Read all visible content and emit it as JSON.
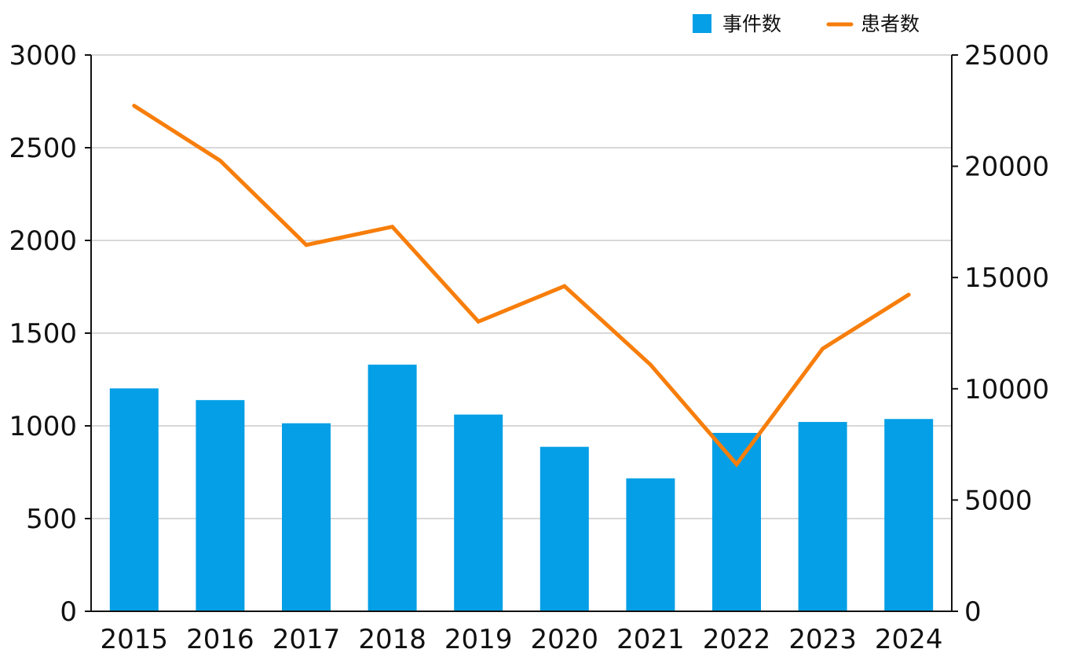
{
  "chart_data": {
    "type": "bar",
    "categories": [
      "2015",
      "2016",
      "2017",
      "2018",
      "2019",
      "2020",
      "2021",
      "2022",
      "2023",
      "2024"
    ],
    "series": [
      {
        "name": "事件数",
        "type": "bar",
        "axis": "left",
        "color": "#049fe6",
        "values": [
          1202,
          1139,
          1014,
          1330,
          1061,
          887,
          717,
          962,
          1021,
          1037
        ]
      },
      {
        "name": "患者数",
        "type": "line",
        "axis": "right",
        "color": "#f77e0b",
        "values": [
          22718,
          20252,
          16464,
          17282,
          13018,
          14613,
          11080,
          6606,
          11803,
          14229
        ]
      }
    ],
    "y_left": {
      "lim": [
        0,
        3000
      ],
      "ticks": [
        "0",
        "500",
        "1000",
        "1500",
        "2000",
        "2500",
        "3000"
      ]
    },
    "y_right": {
      "lim": [
        0,
        25000
      ],
      "ticks": [
        "0",
        "5000",
        "10000",
        "15000",
        "20000",
        "25000"
      ]
    },
    "grid": true,
    "legend_position": "top-right",
    "title": "",
    "xlabel": "",
    "ylabel": ""
  }
}
